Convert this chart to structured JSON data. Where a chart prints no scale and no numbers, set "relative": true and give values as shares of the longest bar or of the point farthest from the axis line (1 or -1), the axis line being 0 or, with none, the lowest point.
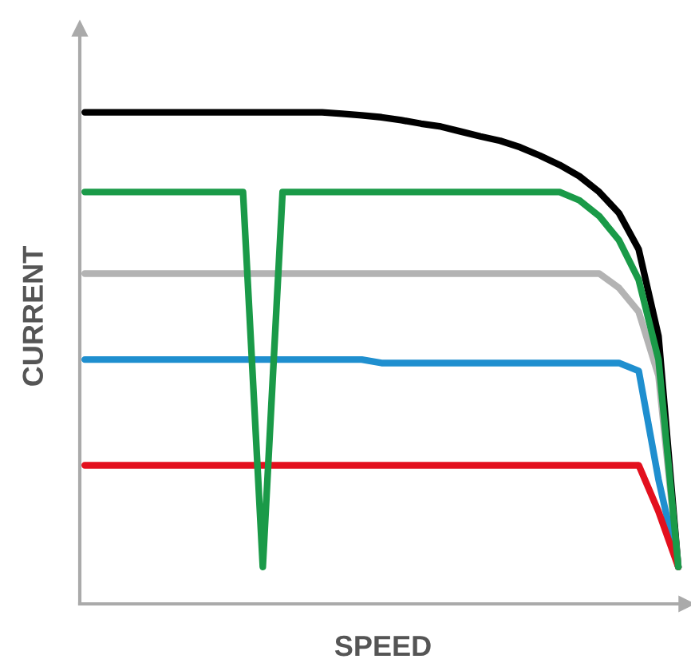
{
  "chart_data": {
    "type": "line",
    "relative": true,
    "xlabel": "SPEED",
    "ylabel": "CURRENT",
    "categories": [
      null,
      null,
      null,
      null,
      null,
      null,
      null,
      null,
      null,
      null,
      null,
      null,
      null,
      null,
      null,
      null,
      null,
      null,
      null,
      null,
      null,
      null,
      null,
      null,
      null,
      null,
      null,
      null,
      null,
      null,
      null
    ],
    "series": [
      {
        "color": "#000000",
        "values": [
          1.0,
          1.0,
          1.0,
          1.0,
          1.0,
          1.0,
          1.0,
          1.0,
          1.0,
          1.0,
          1.0,
          1.0,
          1.0,
          0.997,
          0.994,
          0.99,
          0.984,
          0.977,
          0.971,
          0.961,
          0.951,
          0.942,
          0.929,
          0.912,
          0.893,
          0.87,
          0.838,
          0.795,
          0.721,
          0.545,
          0.075
        ]
      },
      {
        "color": "#b3b3b3",
        "values": [
          0.672,
          0.672,
          0.672,
          0.672,
          0.672,
          0.672,
          0.672,
          0.672,
          0.672,
          0.672,
          0.672,
          0.672,
          0.672,
          0.672,
          0.672,
          0.672,
          0.672,
          0.672,
          0.672,
          0.672,
          0.672,
          0.672,
          0.672,
          0.672,
          0.672,
          0.672,
          0.672,
          0.643,
          0.594,
          0.464,
          0.075
        ]
      },
      {
        "color": "#1f8fcf",
        "values": [
          0.497,
          0.497,
          0.497,
          0.497,
          0.497,
          0.497,
          0.497,
          0.497,
          0.497,
          0.497,
          0.497,
          0.497,
          0.497,
          0.497,
          0.497,
          0.49,
          0.49,
          0.49,
          0.49,
          0.49,
          0.49,
          0.49,
          0.49,
          0.49,
          0.49,
          0.49,
          0.49,
          0.49,
          0.474,
          0.253,
          0.075
        ]
      },
      {
        "color": "#e3101e",
        "values": [
          0.282,
          0.282,
          0.282,
          0.282,
          0.282,
          0.282,
          0.282,
          0.282,
          0.282,
          0.282,
          0.282,
          0.282,
          0.282,
          0.282,
          0.282,
          0.282,
          0.282,
          0.282,
          0.282,
          0.282,
          0.282,
          0.282,
          0.282,
          0.282,
          0.282,
          0.282,
          0.282,
          0.282,
          0.282,
          0.188,
          0.075
        ]
      },
      {
        "color": "#1a9a48",
        "values": [
          0.838,
          0.838,
          0.838,
          0.838,
          0.838,
          0.838,
          0.838,
          0.838,
          0.838,
          0.075,
          0.838,
          0.838,
          0.838,
          0.838,
          0.838,
          0.838,
          0.838,
          0.838,
          0.838,
          0.838,
          0.838,
          0.838,
          0.838,
          0.838,
          0.838,
          0.821,
          0.789,
          0.74,
          0.659,
          0.497,
          0.075
        ]
      }
    ],
    "legend": false,
    "marker": "none",
    "line_style": "solid"
  }
}
